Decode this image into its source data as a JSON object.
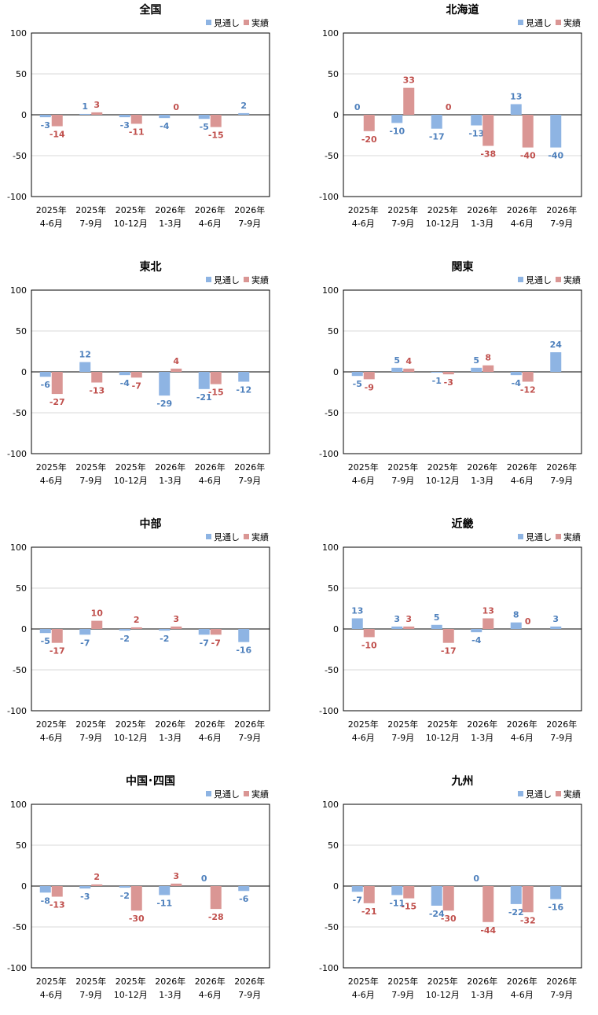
{
  "legend": {
    "forecast": "見通し",
    "actual": "実績"
  },
  "colors": {
    "forecast": "#8EB4E3",
    "actual": "#DA9694",
    "forecast_label": "#4F81BD",
    "actual_label": "#C0504D"
  },
  "chart_data": [
    {
      "type": "bar",
      "title": "全国",
      "categories": [
        [
          "2025年",
          "4-6月"
        ],
        [
          "2025年",
          "7-9月"
        ],
        [
          "2025年",
          "10-12月"
        ],
        [
          "2026年",
          "1-3月"
        ],
        [
          "2026年",
          "4-6月"
        ],
        [
          "2026年",
          "7-9月"
        ]
      ],
      "ylim": [
        -100,
        100
      ],
      "yticks": [
        100,
        50,
        0,
        -50,
        -100
      ],
      "series": [
        {
          "name": "見通し",
          "values": [
            -3,
            1,
            -3,
            -4,
            -5,
            2
          ]
        },
        {
          "name": "実績",
          "values": [
            -14,
            3,
            -11,
            0,
            -15,
            null
          ]
        }
      ]
    },
    {
      "type": "bar",
      "title": "北海道",
      "categories": [
        [
          "2025年",
          "4-6月"
        ],
        [
          "2025年",
          "7-9月"
        ],
        [
          "2025年",
          "10-12月"
        ],
        [
          "2026年",
          "1-3月"
        ],
        [
          "2026年",
          "4-6月"
        ],
        [
          "2026年",
          "7-9月"
        ]
      ],
      "ylim": [
        -100,
        100
      ],
      "yticks": [
        100,
        50,
        0,
        -50,
        -100
      ],
      "series": [
        {
          "name": "見通し",
          "values": [
            0,
            -10,
            -17,
            -13,
            13,
            -40
          ]
        },
        {
          "name": "実績",
          "values": [
            -20,
            33,
            0,
            -38,
            -40,
            null
          ]
        }
      ]
    },
    {
      "type": "bar",
      "title": "東北",
      "categories": [
        [
          "2025年",
          "4-6月"
        ],
        [
          "2025年",
          "7-9月"
        ],
        [
          "2025年",
          "10-12月"
        ],
        [
          "2026年",
          "1-3月"
        ],
        [
          "2026年",
          "4-6月"
        ],
        [
          "2026年",
          "7-9月"
        ]
      ],
      "ylim": [
        -100,
        100
      ],
      "yticks": [
        100,
        50,
        0,
        -50,
        -100
      ],
      "series": [
        {
          "name": "見通し",
          "values": [
            -6,
            12,
            -4,
            -29,
            -21,
            -12
          ]
        },
        {
          "name": "実績",
          "values": [
            -27,
            -13,
            -7,
            4,
            -15,
            null
          ]
        }
      ]
    },
    {
      "type": "bar",
      "title": "関東",
      "categories": [
        [
          "2025年",
          "4-6月"
        ],
        [
          "2025年",
          "7-9月"
        ],
        [
          "2025年",
          "10-12月"
        ],
        [
          "2026年",
          "1-3月"
        ],
        [
          "2026年",
          "4-6月"
        ],
        [
          "2026年",
          "7-9月"
        ]
      ],
      "ylim": [
        -100,
        100
      ],
      "yticks": [
        100,
        50,
        0,
        -50,
        -100
      ],
      "series": [
        {
          "name": "見通し",
          "values": [
            -5,
            5,
            -1,
            5,
            -4,
            24
          ]
        },
        {
          "name": "実績",
          "values": [
            -9,
            4,
            -3,
            8,
            -12,
            null
          ]
        }
      ]
    },
    {
      "type": "bar",
      "title": "中部",
      "categories": [
        [
          "2025年",
          "4-6月"
        ],
        [
          "2025年",
          "7-9月"
        ],
        [
          "2025年",
          "10-12月"
        ],
        [
          "2026年",
          "1-3月"
        ],
        [
          "2026年",
          "4-6月"
        ],
        [
          "2026年",
          "7-9月"
        ]
      ],
      "ylim": [
        -100,
        100
      ],
      "yticks": [
        100,
        50,
        0,
        -50,
        -100
      ],
      "series": [
        {
          "name": "見通し",
          "values": [
            -5,
            -7,
            -2,
            -2,
            -7,
            -16
          ]
        },
        {
          "name": "実績",
          "values": [
            -17,
            10,
            2,
            3,
            -7,
            null
          ]
        }
      ]
    },
    {
      "type": "bar",
      "title": "近畿",
      "categories": [
        [
          "2025年",
          "4-6月"
        ],
        [
          "2025年",
          "7-9月"
        ],
        [
          "2025年",
          "10-12月"
        ],
        [
          "2026年",
          "1-3月"
        ],
        [
          "2026年",
          "4-6月"
        ],
        [
          "2026年",
          "7-9月"
        ]
      ],
      "ylim": [
        -100,
        100
      ],
      "yticks": [
        100,
        50,
        0,
        -50,
        -100
      ],
      "series": [
        {
          "name": "見通し",
          "values": [
            13,
            3,
            5,
            -4,
            8,
            3
          ]
        },
        {
          "name": "実績",
          "values": [
            -10,
            3,
            -17,
            13,
            0,
            null
          ]
        }
      ]
    },
    {
      "type": "bar",
      "title": "中国･四国",
      "categories": [
        [
          "2025年",
          "4-6月"
        ],
        [
          "2025年",
          "7-9月"
        ],
        [
          "2025年",
          "10-12月"
        ],
        [
          "2026年",
          "1-3月"
        ],
        [
          "2026年",
          "4-6月"
        ],
        [
          "2026年",
          "7-9月"
        ]
      ],
      "ylim": [
        -100,
        100
      ],
      "yticks": [
        100,
        50,
        0,
        -50,
        -100
      ],
      "series": [
        {
          "name": "見通し",
          "values": [
            -8,
            -3,
            -2,
            -11,
            0,
            -6
          ]
        },
        {
          "name": "実績",
          "values": [
            -13,
            2,
            -30,
            3,
            -28,
            null
          ]
        }
      ]
    },
    {
      "type": "bar",
      "title": "九州",
      "categories": [
        [
          "2025年",
          "4-6月"
        ],
        [
          "2025年",
          "7-9月"
        ],
        [
          "2025年",
          "10-12月"
        ],
        [
          "2026年",
          "1-3月"
        ],
        [
          "2026年",
          "4-6月"
        ],
        [
          "2026年",
          "7-9月"
        ]
      ],
      "ylim": [
        -100,
        100
      ],
      "yticks": [
        100,
        50,
        0,
        -50,
        -100
      ],
      "series": [
        {
          "name": "見通し",
          "values": [
            -7,
            -11,
            -24,
            0,
            -22,
            -16
          ]
        },
        {
          "name": "実績",
          "values": [
            -21,
            -15,
            -30,
            -44,
            -32,
            null
          ]
        }
      ]
    }
  ]
}
